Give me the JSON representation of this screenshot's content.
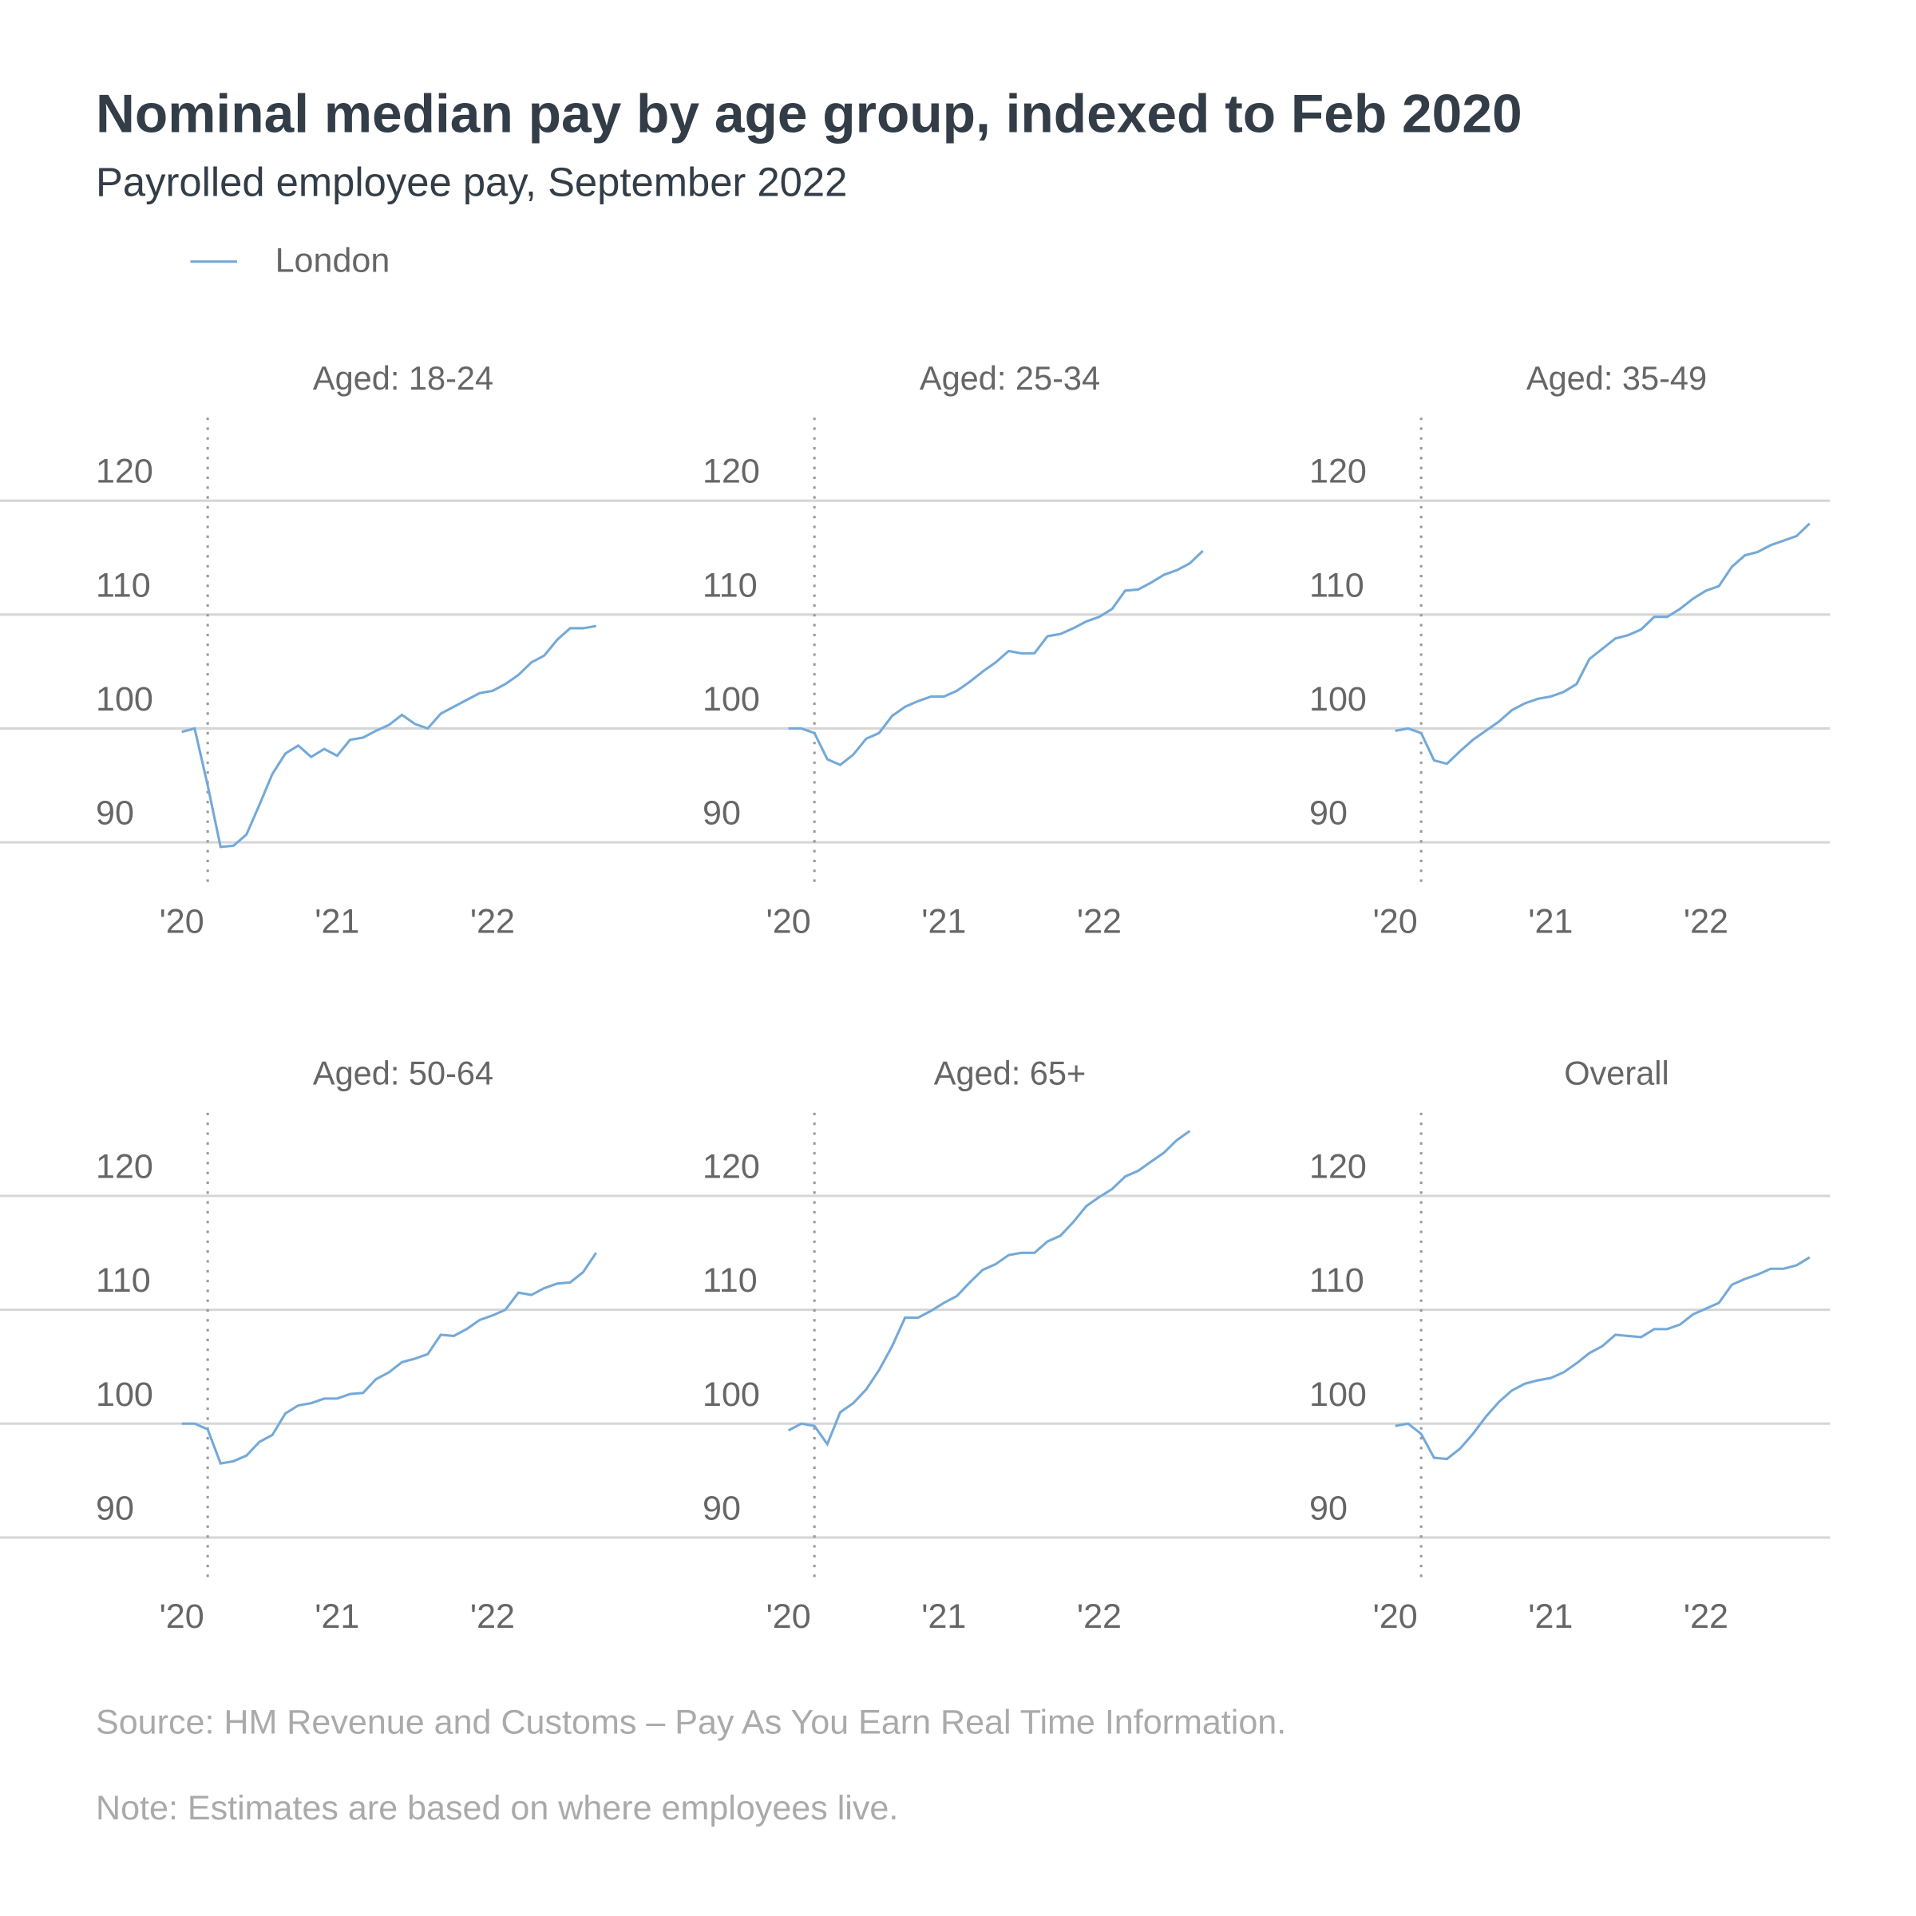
{
  "title": "Nominal median pay by age group, indexed to Feb 2020",
  "subtitle": "Payrolled employee pay, September 2022",
  "source": "Source: HM Revenue and Customs – Pay As You Earn Real Time Information.",
  "note": "Note: Estimates are based on where employees live.",
  "chart_data": [
    {
      "type": "line",
      "title": "Aged: 18-24",
      "x": [
        2020,
        2020.083,
        2020.167,
        2020.25,
        2020.333,
        2020.417,
        2020.5,
        2020.583,
        2020.667,
        2020.75,
        2020.833,
        2020.917,
        2021,
        2021.083,
        2021.167,
        2021.25,
        2021.333,
        2021.417,
        2021.5,
        2021.583,
        2021.667,
        2021.75,
        2021.833,
        2021.917,
        2022,
        2022.083,
        2022.167,
        2022.25,
        2022.333,
        2022.417,
        2022.5,
        2022.583,
        2022.667
      ],
      "series": [
        {
          "name": "London",
          "color": "#74a9d8",
          "values": [
            99.7,
            100,
            95,
            89.6,
            89.7,
            90.7,
            93.3,
            96.0,
            97.8,
            98.5,
            97.5,
            98.2,
            97.6,
            99.0,
            99.2,
            99.8,
            100.3,
            101.2,
            100.4,
            100.0,
            101.3,
            101.9,
            102.5,
            103.1,
            103.3,
            103.9,
            104.7,
            105.8,
            106.4,
            107.8,
            108.8,
            108.8,
            109.0
          ]
        }
      ],
      "xlim": [
        2019.85,
        2023
      ],
      "xticks": [
        {
          "value": 2020,
          "label": "'20"
        },
        {
          "value": 2021,
          "label": "'21"
        },
        {
          "value": 2022,
          "label": "'22"
        }
      ],
      "ylim": [
        86.1,
        127.3
      ],
      "yticks": [
        90,
        100,
        110,
        120
      ],
      "grid": true,
      "reference_x": 2020.167
    },
    {
      "type": "line",
      "title": "Aged: 25-34",
      "x": [
        2020,
        2020.083,
        2020.167,
        2020.25,
        2020.333,
        2020.417,
        2020.5,
        2020.583,
        2020.667,
        2020.75,
        2020.833,
        2020.917,
        2021,
        2021.083,
        2021.167,
        2021.25,
        2021.333,
        2021.417,
        2021.5,
        2021.583,
        2021.667,
        2021.75,
        2021.833,
        2021.917,
        2022,
        2022.083,
        2022.167,
        2022.25,
        2022.333,
        2022.417,
        2022.5,
        2022.583,
        2022.667
      ],
      "series": [
        {
          "color": "#74a9d8",
          "values": [
            100,
            100,
            99.6,
            97.3,
            96.8,
            97.7,
            99.1,
            99.6,
            101.1,
            101.9,
            102.4,
            102.8,
            102.8,
            103.3,
            104.1,
            105.0,
            105.8,
            106.8,
            106.6,
            106.6,
            108.1,
            108.3,
            108.8,
            109.4,
            109.8,
            110.5,
            112.1,
            112.2,
            112.8,
            113.5,
            113.9,
            114.5,
            115.6
          ]
        }
      ],
      "xlim": [
        2019.85,
        2023
      ],
      "xticks": [
        {
          "value": 2020,
          "label": "'20"
        },
        {
          "value": 2021,
          "label": "'21"
        },
        {
          "value": 2022,
          "label": "'22"
        }
      ],
      "ylim": [
        86.1,
        127.3
      ],
      "yticks": [
        90,
        100,
        110,
        120
      ],
      "grid": true,
      "reference_x": 2020.167
    },
    {
      "type": "line",
      "title": "Aged: 35-49",
      "x": [
        2020,
        2020.083,
        2020.167,
        2020.25,
        2020.333,
        2020.417,
        2020.5,
        2020.583,
        2020.667,
        2020.75,
        2020.833,
        2020.917,
        2021,
        2021.083,
        2021.167,
        2021.25,
        2021.333,
        2021.417,
        2021.5,
        2021.583,
        2021.667,
        2021.75,
        2021.833,
        2021.917,
        2022,
        2022.083,
        2022.167,
        2022.25,
        2022.333,
        2022.417,
        2022.5,
        2022.583,
        2022.667
      ],
      "series": [
        {
          "color": "#74a9d8",
          "values": [
            99.8,
            100,
            99.6,
            97.2,
            96.9,
            98.0,
            99.0,
            99.8,
            100.6,
            101.6,
            102.2,
            102.6,
            102.8,
            103.2,
            103.9,
            106.1,
            107.0,
            107.9,
            108.2,
            108.7,
            109.8,
            109.8,
            110.5,
            111.4,
            112.1,
            112.5,
            114.2,
            115.2,
            115.5,
            116.1,
            116.5,
            116.9,
            118.0
          ]
        }
      ],
      "xlim": [
        2019.85,
        2023
      ],
      "xticks": [
        {
          "value": 2020,
          "label": "'20"
        },
        {
          "value": 2021,
          "label": "'21"
        },
        {
          "value": 2022,
          "label": "'22"
        }
      ],
      "ylim": [
        86.1,
        127.3
      ],
      "yticks": [
        90,
        100,
        110,
        120
      ],
      "grid": true,
      "reference_x": 2020.167
    },
    {
      "type": "line",
      "title": "Aged: 50-64",
      "x": [
        2020,
        2020.083,
        2020.167,
        2020.25,
        2020.333,
        2020.417,
        2020.5,
        2020.583,
        2020.667,
        2020.75,
        2020.833,
        2020.917,
        2021,
        2021.083,
        2021.167,
        2021.25,
        2021.333,
        2021.417,
        2021.5,
        2021.583,
        2021.667,
        2021.75,
        2021.833,
        2021.917,
        2022,
        2022.083,
        2022.167,
        2022.25,
        2022.333,
        2022.417,
        2022.5,
        2022.583,
        2022.667
      ],
      "series": [
        {
          "color": "#74a9d8",
          "values": [
            100,
            100,
            99.5,
            96.5,
            96.7,
            97.2,
            98.4,
            99.0,
            100.9,
            101.6,
            101.8,
            102.2,
            102.2,
            102.6,
            102.7,
            103.9,
            104.5,
            105.4,
            105.7,
            106.1,
            107.8,
            107.7,
            108.3,
            109.1,
            109.5,
            110.0,
            111.5,
            111.3,
            111.9,
            112.3,
            112.4,
            113.3,
            115.0
          ]
        }
      ],
      "xlim": [
        2019.85,
        2023
      ],
      "xticks": [
        {
          "value": 2020,
          "label": "'20"
        },
        {
          "value": 2021,
          "label": "'21"
        },
        {
          "value": 2022,
          "label": "'22"
        }
      ],
      "ylim": [
        86.1,
        127.3
      ],
      "yticks": [
        90,
        100,
        110,
        120
      ],
      "grid": true,
      "reference_x": 2020.167
    },
    {
      "type": "line",
      "title": "Aged: 65+",
      "x": [
        2020,
        2020.083,
        2020.167,
        2020.25,
        2020.333,
        2020.417,
        2020.5,
        2020.583,
        2020.667,
        2020.75,
        2020.833,
        2020.917,
        2021,
        2021.083,
        2021.167,
        2021.25,
        2021.333,
        2021.417,
        2021.5,
        2021.583,
        2021.667,
        2021.75,
        2021.833,
        2021.917,
        2022,
        2022.083,
        2022.167,
        2022.25,
        2022.333,
        2022.417,
        2022.5,
        2022.583,
        2022.667
      ],
      "series": [
        {
          "color": "#74a9d8",
          "values": [
            99.4,
            100,
            99.8,
            98.2,
            101.0,
            101.8,
            103.0,
            104.7,
            106.8,
            109.3,
            109.3,
            109.9,
            110.6,
            111.2,
            112.4,
            113.5,
            114.0,
            114.8,
            115.0,
            115.0,
            116.0,
            116.5,
            117.7,
            119.1,
            119.9,
            120.6,
            121.7,
            122.2,
            123.0,
            123.8,
            124.9,
            125.7,
            null
          ]
        }
      ],
      "xlim": [
        2019.85,
        2023
      ],
      "xticks": [
        {
          "value": 2020,
          "label": "'20"
        },
        {
          "value": 2021,
          "label": "'21"
        },
        {
          "value": 2022,
          "label": "'22"
        }
      ],
      "ylim": [
        86.1,
        127.3
      ],
      "yticks": [
        90,
        100,
        110,
        120
      ],
      "grid": true,
      "reference_x": 2020.167
    },
    {
      "type": "line",
      "title": "Overall",
      "x": [
        2020,
        2020.083,
        2020.167,
        2020.25,
        2020.333,
        2020.417,
        2020.5,
        2020.583,
        2020.667,
        2020.75,
        2020.833,
        2020.917,
        2021,
        2021.083,
        2021.167,
        2021.25,
        2021.333,
        2021.417,
        2021.5,
        2021.583,
        2021.667,
        2021.75,
        2021.833,
        2021.917,
        2022,
        2022.083,
        2022.167,
        2022.25,
        2022.333,
        2022.417,
        2022.5,
        2022.583,
        2022.667
      ],
      "series": [
        {
          "color": "#74a9d8",
          "values": [
            99.8,
            100,
            99.1,
            97.0,
            96.9,
            97.8,
            99.1,
            100.6,
            101.9,
            102.9,
            103.5,
            103.8,
            104.0,
            104.5,
            105.3,
            106.2,
            106.8,
            107.8,
            107.7,
            107.6,
            108.3,
            108.3,
            108.7,
            109.6,
            110.1,
            110.6,
            112.2,
            112.7,
            113.1,
            113.6,
            113.6,
            113.9,
            114.6
          ]
        }
      ],
      "xlim": [
        2019.85,
        2023
      ],
      "xticks": [
        {
          "value": 2020,
          "label": "'20"
        },
        {
          "value": 2021,
          "label": "'21"
        },
        {
          "value": 2022,
          "label": "'22"
        }
      ],
      "ylim": [
        86.1,
        127.3
      ],
      "yticks": [
        90,
        100,
        110,
        120
      ],
      "grid": true,
      "reference_x": 2020.167
    }
  ]
}
